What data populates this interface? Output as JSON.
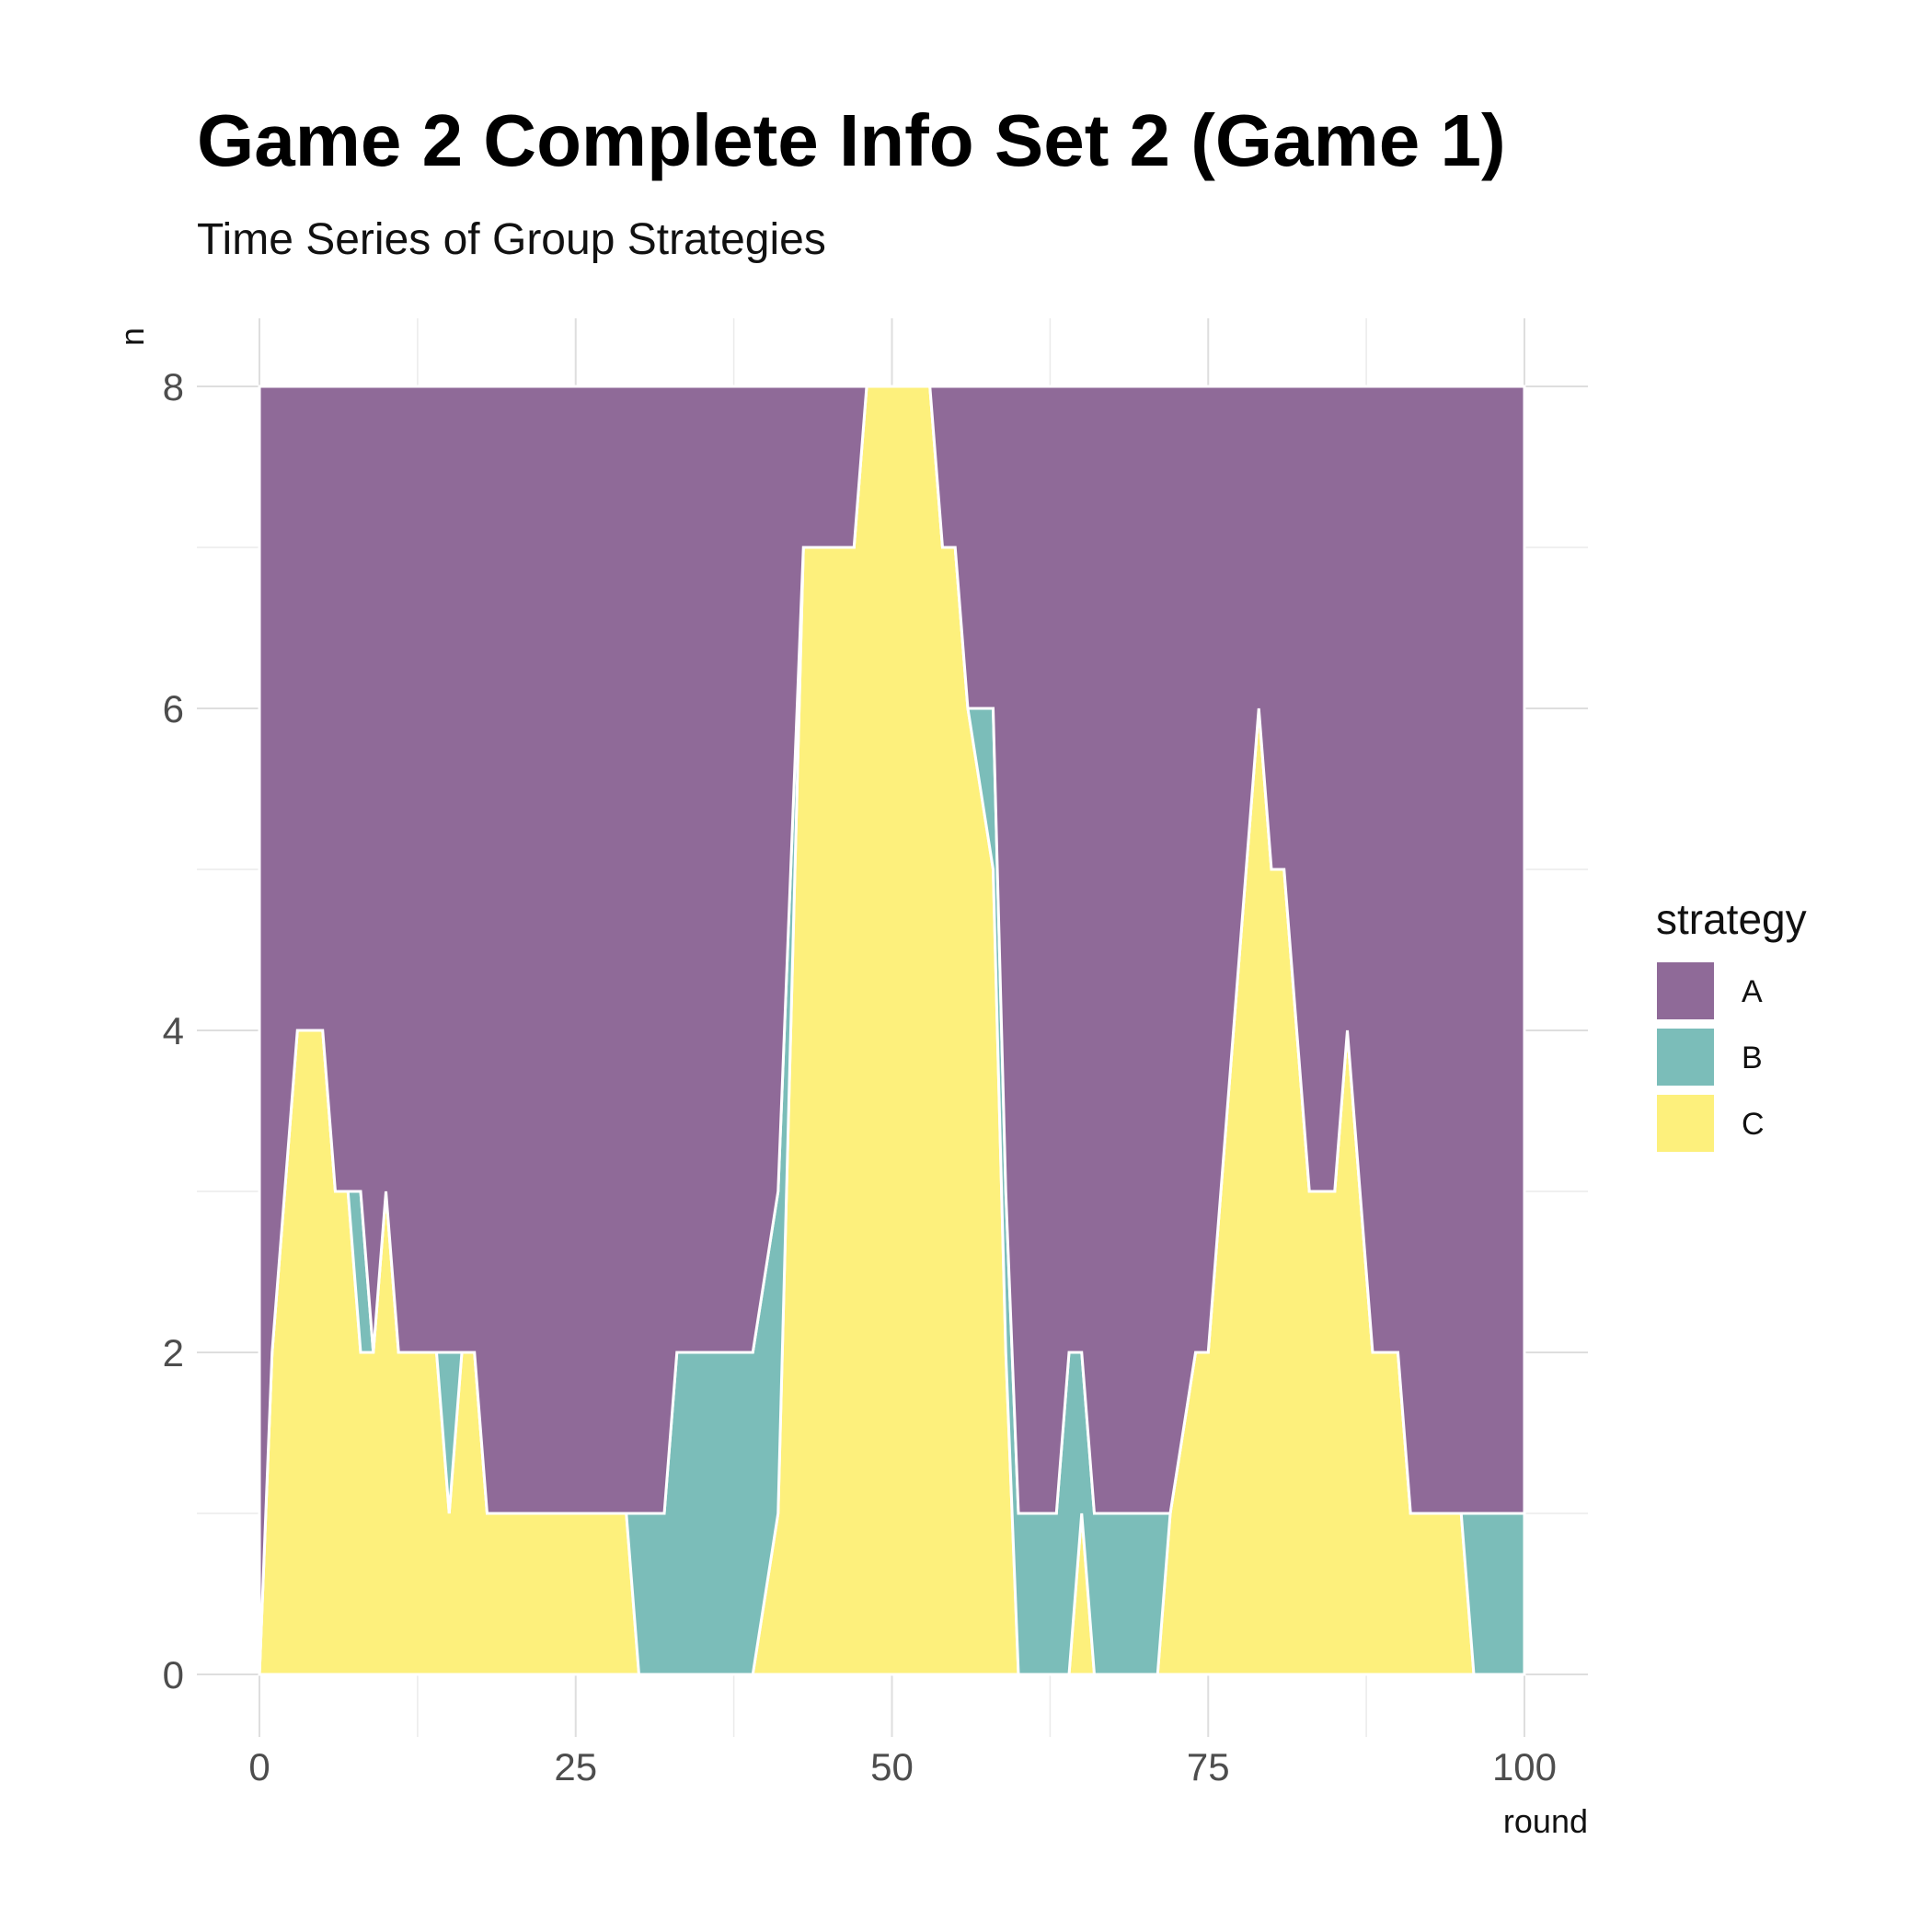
{
  "chart_data": {
    "type": "area",
    "stacked": true,
    "title": "Game 2 Complete Info Set 2 (Game 1)",
    "subtitle": "Time Series of Group Strategies",
    "xlabel": "round",
    "ylabel": "n",
    "xlim": [
      0,
      100
    ],
    "ylim": [
      0,
      8
    ],
    "x_ticks": [
      0,
      25,
      50,
      75,
      100
    ],
    "y_ticks": [
      0,
      2,
      4,
      6,
      8
    ],
    "grid": true,
    "legend": {
      "title": "strategy",
      "position": "right"
    },
    "x": [
      0,
      1,
      3,
      5,
      6,
      7,
      8,
      9,
      10,
      11,
      14,
      15,
      16,
      17,
      18,
      29,
      30,
      32,
      33,
      38,
      39,
      41,
      43,
      44,
      47,
      48,
      53,
      54,
      55,
      56,
      58,
      59,
      60,
      63,
      64,
      65,
      66,
      67,
      71,
      72,
      74,
      75,
      77,
      78,
      79,
      80,
      81,
      83,
      84,
      85,
      86,
      87,
      88,
      90,
      91,
      95,
      96,
      100
    ],
    "series": [
      {
        "name": "A",
        "color": "#8f6a98",
        "values": [
          8,
          6,
          4,
          4,
          5,
          5,
          5,
          6,
          5,
          6,
          6,
          6,
          6,
          6,
          7,
          7,
          7,
          7,
          6,
          6,
          6,
          5,
          1,
          1,
          1,
          0,
          0,
          1,
          1,
          2,
          2,
          5,
          7,
          7,
          6,
          6,
          7,
          7,
          7,
          7,
          6,
          6,
          4,
          3,
          2,
          3,
          3,
          5,
          5,
          5,
          4,
          5,
          6,
          6,
          7,
          7,
          7,
          7
        ]
      },
      {
        "name": "B",
        "color": "#7bbdb9",
        "values": [
          0,
          0,
          0,
          0,
          0,
          0,
          1,
          0,
          0,
          0,
          0,
          1,
          0,
          0,
          0,
          0,
          1,
          1,
          2,
          2,
          2,
          2,
          0,
          0,
          0,
          0,
          0,
          0,
          0,
          0,
          1,
          1,
          1,
          1,
          2,
          1,
          1,
          1,
          1,
          0,
          0,
          0,
          0,
          0,
          0,
          0,
          0,
          0,
          0,
          0,
          0,
          0,
          0,
          0,
          0,
          0,
          1,
          1
        ]
      },
      {
        "name": "C",
        "color": "#fdf07c",
        "values": [
          0,
          2,
          4,
          4,
          3,
          3,
          2,
          2,
          3,
          2,
          2,
          1,
          2,
          2,
          1,
          1,
          0,
          0,
          0,
          0,
          0,
          1,
          7,
          7,
          7,
          8,
          8,
          7,
          7,
          6,
          5,
          2,
          0,
          0,
          0,
          1,
          0,
          0,
          0,
          1,
          2,
          2,
          4,
          5,
          6,
          5,
          5,
          3,
          3,
          3,
          4,
          3,
          2,
          2,
          1,
          1,
          0,
          0
        ]
      }
    ]
  }
}
